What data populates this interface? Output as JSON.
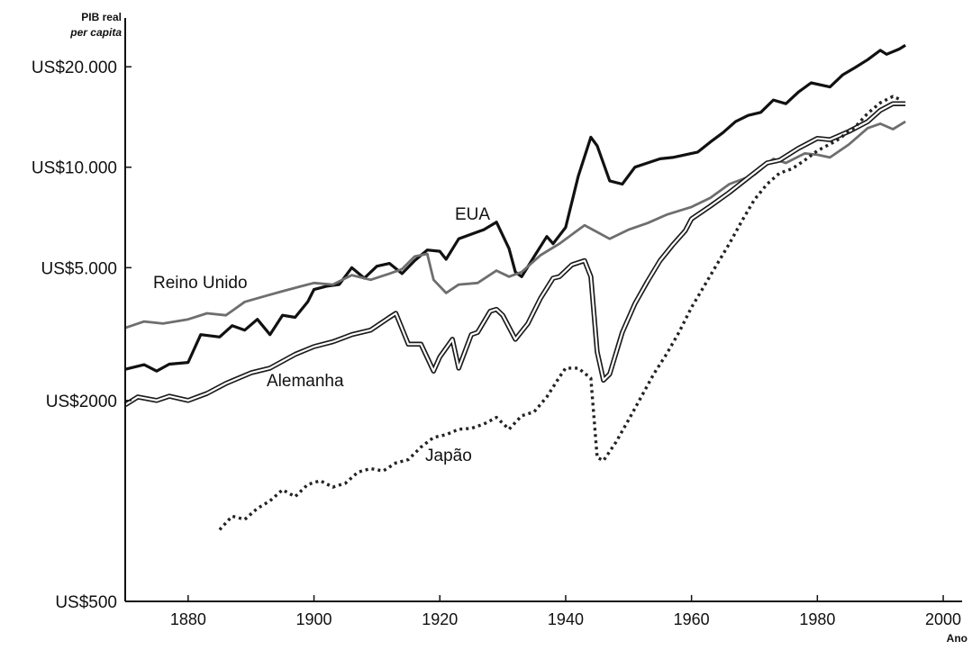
{
  "chart_data": {
    "type": "line",
    "ylabel_line1": "PIB real",
    "ylabel_line2": "per capita",
    "xlabel": "Ano",
    "y_scale": "log",
    "xlim": [
      1870,
      2003
    ],
    "ylim": [
      500,
      28000
    ],
    "grid": false,
    "legend": "inline labels next to each line",
    "x_ticks": [
      1880,
      1900,
      1920,
      1940,
      1960,
      1980,
      2000
    ],
    "y_ticks": [
      {
        "value": 500,
        "label": "US$500"
      },
      {
        "value": 2000,
        "label": "US$2000"
      },
      {
        "value": 5000,
        "label": "US$5.000"
      },
      {
        "value": 10000,
        "label": "US$10.000"
      },
      {
        "value": 20000,
        "label": "US$20.000"
      }
    ],
    "series": [
      {
        "name": "EUA",
        "style": "thick",
        "color": "#111111",
        "points": [
          [
            1870,
            2480
          ],
          [
            1873,
            2560
          ],
          [
            1875,
            2450
          ],
          [
            1877,
            2570
          ],
          [
            1880,
            2600
          ],
          [
            1882,
            3150
          ],
          [
            1885,
            3100
          ],
          [
            1887,
            3350
          ],
          [
            1889,
            3250
          ],
          [
            1891,
            3500
          ],
          [
            1893,
            3150
          ],
          [
            1895,
            3600
          ],
          [
            1897,
            3550
          ],
          [
            1899,
            3950
          ],
          [
            1900,
            4300
          ],
          [
            1902,
            4400
          ],
          [
            1904,
            4450
          ],
          [
            1906,
            5000
          ],
          [
            1908,
            4650
          ],
          [
            1910,
            5050
          ],
          [
            1912,
            5150
          ],
          [
            1914,
            4800
          ],
          [
            1916,
            5250
          ],
          [
            1918,
            5650
          ],
          [
            1920,
            5600
          ],
          [
            1921,
            5300
          ],
          [
            1923,
            6100
          ],
          [
            1925,
            6300
          ],
          [
            1927,
            6500
          ],
          [
            1929,
            6850
          ],
          [
            1931,
            5700
          ],
          [
            1932,
            4850
          ],
          [
            1933,
            4700
          ],
          [
            1935,
            5400
          ],
          [
            1937,
            6200
          ],
          [
            1938,
            5900
          ],
          [
            1940,
            6600
          ],
          [
            1942,
            9400
          ],
          [
            1944,
            12300
          ],
          [
            1945,
            11600
          ],
          [
            1947,
            9100
          ],
          [
            1949,
            8900
          ],
          [
            1951,
            10000
          ],
          [
            1953,
            10300
          ],
          [
            1955,
            10600
          ],
          [
            1957,
            10700
          ],
          [
            1959,
            10900
          ],
          [
            1961,
            11100
          ],
          [
            1963,
            11900
          ],
          [
            1965,
            12700
          ],
          [
            1967,
            13700
          ],
          [
            1969,
            14300
          ],
          [
            1971,
            14600
          ],
          [
            1973,
            15900
          ],
          [
            1975,
            15500
          ],
          [
            1977,
            16800
          ],
          [
            1979,
            17900
          ],
          [
            1982,
            17400
          ],
          [
            1984,
            18900
          ],
          [
            1986,
            19900
          ],
          [
            1988,
            21000
          ],
          [
            1990,
            22400
          ],
          [
            1991,
            21800
          ],
          [
            1993,
            22600
          ],
          [
            1994,
            23200
          ]
        ]
      },
      {
        "name": "Reino Unido",
        "style": "gray",
        "color": "#6e6e6e",
        "points": [
          [
            1870,
            3300
          ],
          [
            1873,
            3450
          ],
          [
            1876,
            3400
          ],
          [
            1880,
            3500
          ],
          [
            1883,
            3650
          ],
          [
            1886,
            3600
          ],
          [
            1889,
            3950
          ],
          [
            1892,
            4100
          ],
          [
            1895,
            4250
          ],
          [
            1898,
            4400
          ],
          [
            1900,
            4500
          ],
          [
            1903,
            4450
          ],
          [
            1906,
            4750
          ],
          [
            1909,
            4600
          ],
          [
            1912,
            4800
          ],
          [
            1914,
            4950
          ],
          [
            1916,
            5400
          ],
          [
            1918,
            5500
          ],
          [
            1919,
            4600
          ],
          [
            1921,
            4200
          ],
          [
            1923,
            4450
          ],
          [
            1926,
            4500
          ],
          [
            1929,
            4900
          ],
          [
            1931,
            4700
          ],
          [
            1933,
            4850
          ],
          [
            1936,
            5450
          ],
          [
            1939,
            5900
          ],
          [
            1943,
            6700
          ],
          [
            1947,
            6100
          ],
          [
            1950,
            6500
          ],
          [
            1953,
            6800
          ],
          [
            1956,
            7200
          ],
          [
            1960,
            7600
          ],
          [
            1963,
            8100
          ],
          [
            1966,
            8900
          ],
          [
            1970,
            9500
          ],
          [
            1973,
            10600
          ],
          [
            1975,
            10300
          ],
          [
            1978,
            11000
          ],
          [
            1980,
            10900
          ],
          [
            1982,
            10700
          ],
          [
            1985,
            11700
          ],
          [
            1988,
            13100
          ],
          [
            1990,
            13500
          ],
          [
            1992,
            13000
          ],
          [
            1994,
            13700
          ]
        ]
      },
      {
        "name": "Alemanha",
        "style": "double",
        "color": "#1a1a1a",
        "points": [
          [
            1870,
            1940
          ],
          [
            1872,
            2050
          ],
          [
            1875,
            2000
          ],
          [
            1877,
            2060
          ],
          [
            1880,
            2000
          ],
          [
            1883,
            2100
          ],
          [
            1886,
            2250
          ],
          [
            1890,
            2420
          ],
          [
            1893,
            2500
          ],
          [
            1897,
            2750
          ],
          [
            1900,
            2900
          ],
          [
            1903,
            3000
          ],
          [
            1906,
            3150
          ],
          [
            1909,
            3250
          ],
          [
            1912,
            3550
          ],
          [
            1913,
            3650
          ],
          [
            1915,
            2950
          ],
          [
            1917,
            2950
          ],
          [
            1919,
            2450
          ],
          [
            1920,
            2700
          ],
          [
            1922,
            3050
          ],
          [
            1923,
            2500
          ],
          [
            1925,
            3150
          ],
          [
            1926,
            3200
          ],
          [
            1928,
            3700
          ],
          [
            1929,
            3750
          ],
          [
            1930,
            3600
          ],
          [
            1932,
            3050
          ],
          [
            1934,
            3400
          ],
          [
            1936,
            4050
          ],
          [
            1938,
            4650
          ],
          [
            1939,
            4700
          ],
          [
            1941,
            5100
          ],
          [
            1943,
            5250
          ],
          [
            1944,
            4700
          ],
          [
            1945,
            2800
          ],
          [
            1946,
            2300
          ],
          [
            1947,
            2400
          ],
          [
            1949,
            3200
          ],
          [
            1951,
            3900
          ],
          [
            1953,
            4550
          ],
          [
            1955,
            5250
          ],
          [
            1957,
            5850
          ],
          [
            1959,
            6450
          ],
          [
            1960,
            7000
          ],
          [
            1963,
            7650
          ],
          [
            1966,
            8400
          ],
          [
            1969,
            9300
          ],
          [
            1972,
            10300
          ],
          [
            1974,
            10500
          ],
          [
            1977,
            11400
          ],
          [
            1980,
            12200
          ],
          [
            1982,
            12100
          ],
          [
            1985,
            12800
          ],
          [
            1988,
            13700
          ],
          [
            1990,
            14800
          ],
          [
            1992,
            15500
          ],
          [
            1994,
            15500
          ]
        ]
      },
      {
        "name": "Japão",
        "style": "dotted",
        "color": "#222222",
        "points": [
          [
            1885,
            820
          ],
          [
            1887,
            900
          ],
          [
            1889,
            880
          ],
          [
            1891,
            950
          ],
          [
            1893,
            1000
          ],
          [
            1895,
            1080
          ],
          [
            1897,
            1030
          ],
          [
            1899,
            1120
          ],
          [
            1901,
            1150
          ],
          [
            1903,
            1100
          ],
          [
            1905,
            1130
          ],
          [
            1907,
            1220
          ],
          [
            1909,
            1250
          ],
          [
            1911,
            1230
          ],
          [
            1913,
            1300
          ],
          [
            1915,
            1330
          ],
          [
            1917,
            1450
          ],
          [
            1919,
            1550
          ],
          [
            1921,
            1580
          ],
          [
            1923,
            1640
          ],
          [
            1925,
            1650
          ],
          [
            1927,
            1700
          ],
          [
            1929,
            1780
          ],
          [
            1931,
            1640
          ],
          [
            1933,
            1800
          ],
          [
            1935,
            1850
          ],
          [
            1937,
            2050
          ],
          [
            1939,
            2350
          ],
          [
            1940,
            2500
          ],
          [
            1942,
            2500
          ],
          [
            1944,
            2330
          ],
          [
            1945,
            1350
          ],
          [
            1946,
            1320
          ],
          [
            1948,
            1500
          ],
          [
            1950,
            1750
          ],
          [
            1952,
            2050
          ],
          [
            1954,
            2400
          ],
          [
            1956,
            2750
          ],
          [
            1958,
            3200
          ],
          [
            1960,
            3800
          ],
          [
            1962,
            4400
          ],
          [
            1964,
            5100
          ],
          [
            1966,
            5900
          ],
          [
            1968,
            6900
          ],
          [
            1970,
            8000
          ],
          [
            1972,
            8900
          ],
          [
            1974,
            9600
          ],
          [
            1976,
            9900
          ],
          [
            1978,
            10500
          ],
          [
            1980,
            11200
          ],
          [
            1983,
            12000
          ],
          [
            1986,
            13200
          ],
          [
            1988,
            14500
          ],
          [
            1990,
            15600
          ],
          [
            1992,
            16300
          ],
          [
            1993,
            16000
          ]
        ]
      }
    ],
    "annotations": [
      {
        "label": "EUA",
        "series": "EUA"
      },
      {
        "label": "Reino Unido",
        "series": "Reino Unido"
      },
      {
        "label": "Alemanha",
        "series": "Alemanha"
      },
      {
        "label": "Japão",
        "series": "Japão"
      }
    ]
  }
}
